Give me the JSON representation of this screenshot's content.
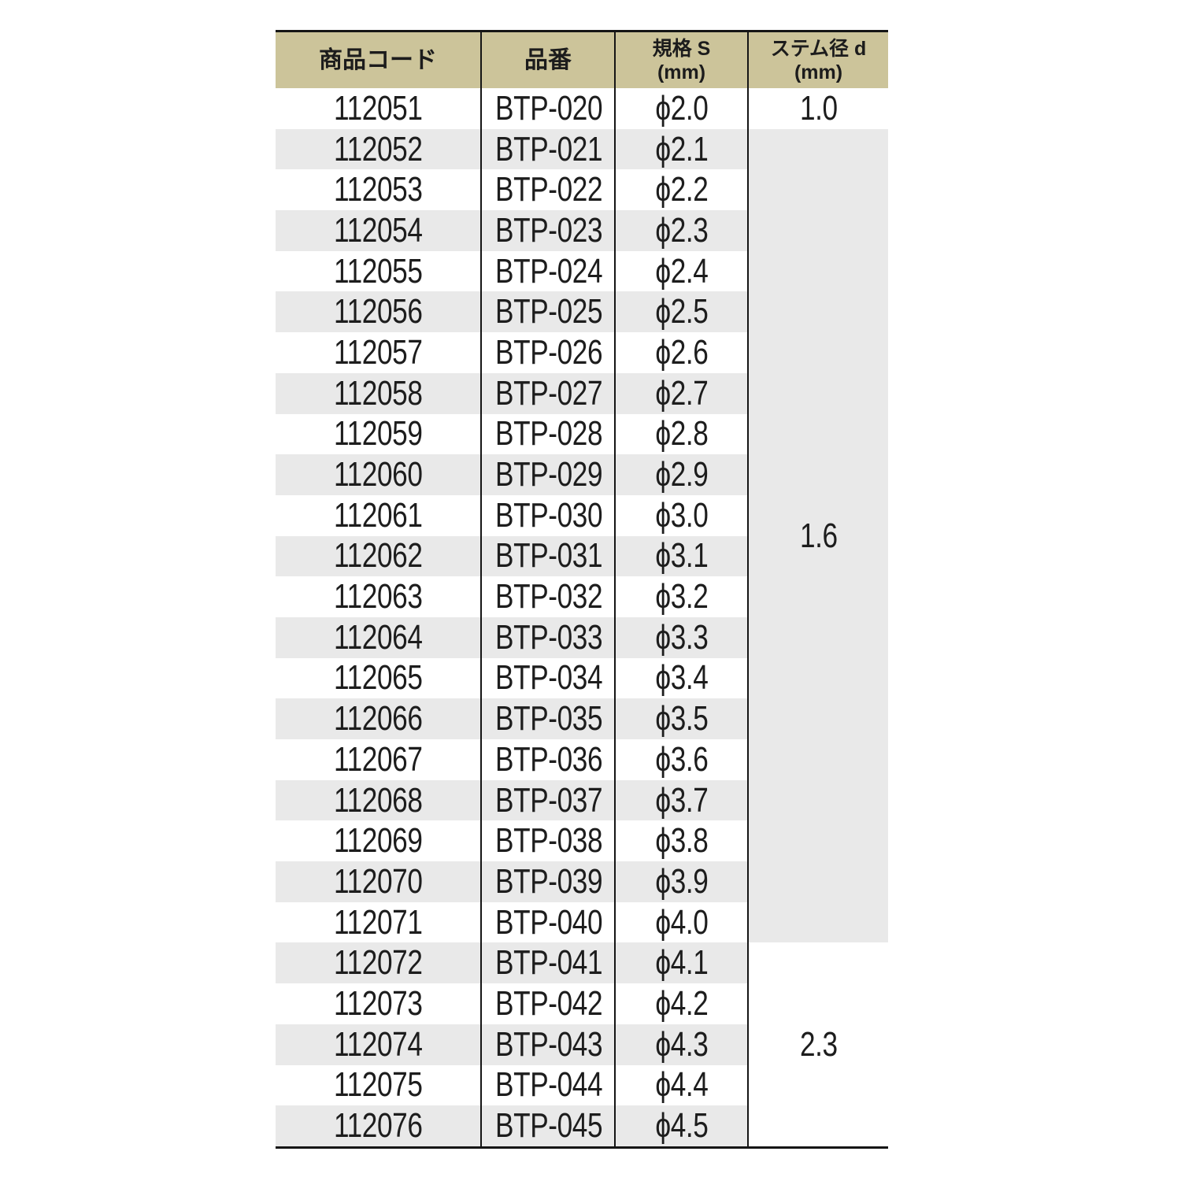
{
  "page": {
    "background": "#ffffff"
  },
  "table": {
    "columns": [
      {
        "id": "product_code",
        "line1": "商品コード",
        "line2": null
      },
      {
        "id": "part_number",
        "line1": "品番",
        "line2": null
      },
      {
        "id": "spec_s",
        "line1": "規格 S",
        "line2": "(mm)"
      },
      {
        "id": "stem_dia",
        "line1": "ステム径 d",
        "line2": "(mm)"
      }
    ],
    "rows": [
      {
        "code": "112051",
        "part": "BTP-020",
        "spec": "ϕ2.0"
      },
      {
        "code": "112052",
        "part": "BTP-021",
        "spec": "ϕ2.1"
      },
      {
        "code": "112053",
        "part": "BTP-022",
        "spec": "ϕ2.2"
      },
      {
        "code": "112054",
        "part": "BTP-023",
        "spec": "ϕ2.3"
      },
      {
        "code": "112055",
        "part": "BTP-024",
        "spec": "ϕ2.4"
      },
      {
        "code": "112056",
        "part": "BTP-025",
        "spec": "ϕ2.5"
      },
      {
        "code": "112057",
        "part": "BTP-026",
        "spec": "ϕ2.6"
      },
      {
        "code": "112058",
        "part": "BTP-027",
        "spec": "ϕ2.7"
      },
      {
        "code": "112059",
        "part": "BTP-028",
        "spec": "ϕ2.8"
      },
      {
        "code": "112060",
        "part": "BTP-029",
        "spec": "ϕ2.9"
      },
      {
        "code": "112061",
        "part": "BTP-030",
        "spec": "ϕ3.0"
      },
      {
        "code": "112062",
        "part": "BTP-031",
        "spec": "ϕ3.1"
      },
      {
        "code": "112063",
        "part": "BTP-032",
        "spec": "ϕ3.2"
      },
      {
        "code": "112064",
        "part": "BTP-033",
        "spec": "ϕ3.3"
      },
      {
        "code": "112065",
        "part": "BTP-034",
        "spec": "ϕ3.4"
      },
      {
        "code": "112066",
        "part": "BTP-035",
        "spec": "ϕ3.5"
      },
      {
        "code": "112067",
        "part": "BTP-036",
        "spec": "ϕ3.6"
      },
      {
        "code": "112068",
        "part": "BTP-037",
        "spec": "ϕ3.7"
      },
      {
        "code": "112069",
        "part": "BTP-038",
        "spec": "ϕ3.8"
      },
      {
        "code": "112070",
        "part": "BTP-039",
        "spec": "ϕ3.9"
      },
      {
        "code": "112071",
        "part": "BTP-040",
        "spec": "ϕ4.0"
      },
      {
        "code": "112072",
        "part": "BTP-041",
        "spec": "ϕ4.1"
      },
      {
        "code": "112073",
        "part": "BTP-042",
        "spec": "ϕ4.2"
      },
      {
        "code": "112074",
        "part": "BTP-043",
        "spec": "ϕ4.3"
      },
      {
        "code": "112075",
        "part": "BTP-044",
        "spec": "ϕ4.4"
      },
      {
        "code": "112076",
        "part": "BTP-045",
        "spec": "ϕ4.5"
      }
    ],
    "stem_groups": [
      {
        "value": "1.0",
        "start": 0,
        "span": 1,
        "bg": "#ffffff"
      },
      {
        "value": "1.6",
        "start": 1,
        "span": 20,
        "bg": "#e9e9e9"
      },
      {
        "value": "2.3",
        "start": 21,
        "span": 5,
        "bg": "#ffffff"
      }
    ],
    "colors": {
      "header_bg": "#ccc49a",
      "stripe_bg": "#e9e9e9",
      "row_bg": "#ffffff",
      "border": "#151515",
      "text": "#1d1d1d"
    }
  },
  "chart_data": {
    "type": "table",
    "title": "",
    "columns": [
      "商品コード",
      "品番",
      "規格 S (mm)",
      "ステム径 d (mm)"
    ],
    "rows": [
      [
        "112051",
        "BTP-020",
        "ϕ2.0",
        "1.0"
      ],
      [
        "112052",
        "BTP-021",
        "ϕ2.1",
        "1.6"
      ],
      [
        "112053",
        "BTP-022",
        "ϕ2.2",
        "1.6"
      ],
      [
        "112054",
        "BTP-023",
        "ϕ2.3",
        "1.6"
      ],
      [
        "112055",
        "BTP-024",
        "ϕ2.4",
        "1.6"
      ],
      [
        "112056",
        "BTP-025",
        "ϕ2.5",
        "1.6"
      ],
      [
        "112057",
        "BTP-026",
        "ϕ2.6",
        "1.6"
      ],
      [
        "112058",
        "BTP-027",
        "ϕ2.7",
        "1.6"
      ],
      [
        "112059",
        "BTP-028",
        "ϕ2.8",
        "1.6"
      ],
      [
        "112060",
        "BTP-029",
        "ϕ2.9",
        "1.6"
      ],
      [
        "112061",
        "BTP-030",
        "ϕ3.0",
        "1.6"
      ],
      [
        "112062",
        "BTP-031",
        "ϕ3.1",
        "1.6"
      ],
      [
        "112063",
        "BTP-032",
        "ϕ3.2",
        "1.6"
      ],
      [
        "112064",
        "BTP-033",
        "ϕ3.3",
        "1.6"
      ],
      [
        "112065",
        "BTP-034",
        "ϕ3.4",
        "1.6"
      ],
      [
        "112066",
        "BTP-035",
        "ϕ3.5",
        "1.6"
      ],
      [
        "112067",
        "BTP-036",
        "ϕ3.6",
        "1.6"
      ],
      [
        "112068",
        "BTP-037",
        "ϕ3.7",
        "1.6"
      ],
      [
        "112069",
        "BTP-038",
        "ϕ3.8",
        "1.6"
      ],
      [
        "112070",
        "BTP-039",
        "ϕ3.9",
        "1.6"
      ],
      [
        "112071",
        "BTP-040",
        "ϕ4.0",
        "1.6"
      ],
      [
        "112072",
        "BTP-041",
        "ϕ4.1",
        "2.3"
      ],
      [
        "112073",
        "BTP-042",
        "ϕ4.2",
        "2.3"
      ],
      [
        "112074",
        "BTP-043",
        "ϕ4.3",
        "2.3"
      ],
      [
        "112075",
        "BTP-044",
        "ϕ4.4",
        "2.3"
      ],
      [
        "112076",
        "BTP-045",
        "ϕ4.5",
        "2.3"
      ]
    ],
    "merged_cells": [
      {
        "column": 3,
        "value": "1.0",
        "row_span": [
          0,
          0
        ]
      },
      {
        "column": 3,
        "value": "1.6",
        "row_span": [
          1,
          20
        ]
      },
      {
        "column": 3,
        "value": "2.3",
        "row_span": [
          21,
          25
        ]
      }
    ],
    "layout": {
      "zebra_striping": "even product codes shaded #e9e9e9",
      "header_bg": "#ccc49a",
      "outer_borders": "top and bottom only",
      "column_separators": "vertical black lines full height"
    }
  }
}
